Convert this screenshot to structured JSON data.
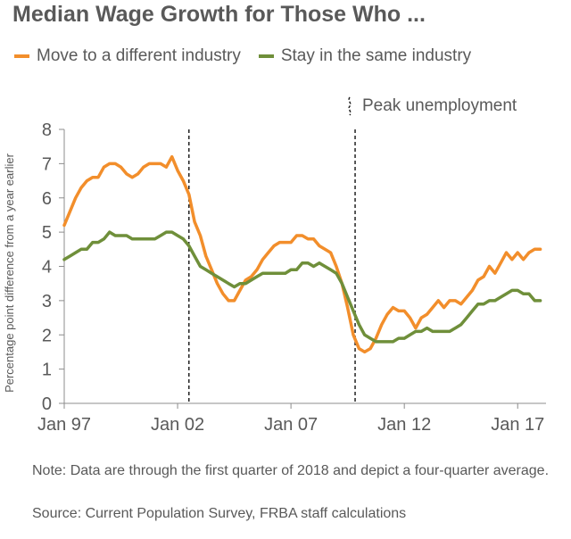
{
  "title": "Median Wage Growth for Those Who  ...",
  "legend": {
    "move": "Move to a different industry",
    "stay": "Stay in the same industry"
  },
  "annotation": "Peak unemployment",
  "note": "Note: Data are through the first quarter of 2018 and depict a four-quarter  average.",
  "source": "Source: Current Population Survey, FRBA staff calculations",
  "colors": {
    "move": "#f28e2b",
    "stay": "#6f8f3a",
    "text": "#595959",
    "axis": "#8c8c8c"
  },
  "chart_data": {
    "type": "line",
    "title": "Median Wage Growth for Those Who  ...",
    "ylabel": "Percentage point difference from a year earlier",
    "xlabel": "",
    "xlim": [
      1997.0,
      2018.25
    ],
    "ylim": [
      0,
      8
    ],
    "yticks": [
      "0",
      "1",
      "2",
      "3",
      "4",
      "5",
      "6",
      "7",
      "8"
    ],
    "xticks": [
      {
        "label": "Jan 97",
        "x": 1997.0
      },
      {
        "label": "Jan 02",
        "x": 2002.0
      },
      {
        "label": "Jan 07",
        "x": 2007.0
      },
      {
        "label": "Jan 12",
        "x": 2012.0
      },
      {
        "label": "Jan 17",
        "x": 2017.0
      }
    ],
    "grid": false,
    "legend_position": "top",
    "vlines": [
      {
        "x": 2002.5,
        "label": ""
      },
      {
        "x": 2009.83,
        "label": "Peak unemployment"
      }
    ],
    "series": [
      {
        "name": "Move to a different industry",
        "color": "#f28e2b",
        "points": [
          [
            1997.0,
            5.2
          ],
          [
            1997.25,
            5.6
          ],
          [
            1997.5,
            6.0
          ],
          [
            1997.75,
            6.3
          ],
          [
            1998.0,
            6.5
          ],
          [
            1998.25,
            6.6
          ],
          [
            1998.5,
            6.6
          ],
          [
            1998.75,
            6.9
          ],
          [
            1999.0,
            7.0
          ],
          [
            1999.25,
            7.0
          ],
          [
            1999.5,
            6.9
          ],
          [
            1999.75,
            6.7
          ],
          [
            2000.0,
            6.6
          ],
          [
            2000.25,
            6.7
          ],
          [
            2000.5,
            6.9
          ],
          [
            2000.75,
            7.0
          ],
          [
            2001.0,
            7.0
          ],
          [
            2001.25,
            7.0
          ],
          [
            2001.5,
            6.9
          ],
          [
            2001.75,
            7.2
          ],
          [
            2002.0,
            6.8
          ],
          [
            2002.25,
            6.5
          ],
          [
            2002.5,
            6.1
          ],
          [
            2002.75,
            5.3
          ],
          [
            2003.0,
            4.9
          ],
          [
            2003.25,
            4.3
          ],
          [
            2003.5,
            3.9
          ],
          [
            2003.75,
            3.5
          ],
          [
            2004.0,
            3.2
          ],
          [
            2004.25,
            3.0
          ],
          [
            2004.5,
            3.0
          ],
          [
            2004.75,
            3.3
          ],
          [
            2005.0,
            3.6
          ],
          [
            2005.25,
            3.7
          ],
          [
            2005.5,
            3.9
          ],
          [
            2005.75,
            4.2
          ],
          [
            2006.0,
            4.4
          ],
          [
            2006.25,
            4.6
          ],
          [
            2006.5,
            4.7
          ],
          [
            2006.75,
            4.7
          ],
          [
            2007.0,
            4.7
          ],
          [
            2007.25,
            4.9
          ],
          [
            2007.5,
            4.9
          ],
          [
            2007.75,
            4.8
          ],
          [
            2008.0,
            4.8
          ],
          [
            2008.25,
            4.6
          ],
          [
            2008.5,
            4.5
          ],
          [
            2008.75,
            4.4
          ],
          [
            2009.0,
            4.0
          ],
          [
            2009.25,
            3.5
          ],
          [
            2009.5,
            2.8
          ],
          [
            2009.75,
            2.0
          ],
          [
            2010.0,
            1.6
          ],
          [
            2010.25,
            1.5
          ],
          [
            2010.5,
            1.6
          ],
          [
            2010.75,
            1.9
          ],
          [
            2011.0,
            2.3
          ],
          [
            2011.25,
            2.6
          ],
          [
            2011.5,
            2.8
          ],
          [
            2011.75,
            2.7
          ],
          [
            2012.0,
            2.7
          ],
          [
            2012.25,
            2.5
          ],
          [
            2012.5,
            2.2
          ],
          [
            2012.75,
            2.5
          ],
          [
            2013.0,
            2.6
          ],
          [
            2013.25,
            2.8
          ],
          [
            2013.5,
            3.0
          ],
          [
            2013.75,
            2.8
          ],
          [
            2014.0,
            3.0
          ],
          [
            2014.25,
            3.0
          ],
          [
            2014.5,
            2.9
          ],
          [
            2014.75,
            3.1
          ],
          [
            2015.0,
            3.3
          ],
          [
            2015.25,
            3.6
          ],
          [
            2015.5,
            3.7
          ],
          [
            2015.75,
            4.0
          ],
          [
            2016.0,
            3.8
          ],
          [
            2016.25,
            4.1
          ],
          [
            2016.5,
            4.4
          ],
          [
            2016.75,
            4.2
          ],
          [
            2017.0,
            4.4
          ],
          [
            2017.25,
            4.2
          ],
          [
            2017.5,
            4.4
          ],
          [
            2017.75,
            4.5
          ],
          [
            2018.0,
            4.5
          ]
        ]
      },
      {
        "name": "Stay in the same industry",
        "color": "#6f8f3a",
        "points": [
          [
            1997.0,
            4.2
          ],
          [
            1997.25,
            4.3
          ],
          [
            1997.5,
            4.4
          ],
          [
            1997.75,
            4.5
          ],
          [
            1998.0,
            4.5
          ],
          [
            1998.25,
            4.7
          ],
          [
            1998.5,
            4.7
          ],
          [
            1998.75,
            4.8
          ],
          [
            1999.0,
            5.0
          ],
          [
            1999.25,
            4.9
          ],
          [
            1999.5,
            4.9
          ],
          [
            1999.75,
            4.9
          ],
          [
            2000.0,
            4.8
          ],
          [
            2000.25,
            4.8
          ],
          [
            2000.5,
            4.8
          ],
          [
            2000.75,
            4.8
          ],
          [
            2001.0,
            4.8
          ],
          [
            2001.25,
            4.9
          ],
          [
            2001.5,
            5.0
          ],
          [
            2001.75,
            5.0
          ],
          [
            2002.0,
            4.9
          ],
          [
            2002.25,
            4.8
          ],
          [
            2002.5,
            4.6
          ],
          [
            2002.75,
            4.3
          ],
          [
            2003.0,
            4.0
          ],
          [
            2003.25,
            3.9
          ],
          [
            2003.5,
            3.8
          ],
          [
            2003.75,
            3.7
          ],
          [
            2004.0,
            3.6
          ],
          [
            2004.25,
            3.5
          ],
          [
            2004.5,
            3.4
          ],
          [
            2004.75,
            3.5
          ],
          [
            2005.0,
            3.5
          ],
          [
            2005.25,
            3.6
          ],
          [
            2005.5,
            3.7
          ],
          [
            2005.75,
            3.8
          ],
          [
            2006.0,
            3.8
          ],
          [
            2006.25,
            3.8
          ],
          [
            2006.5,
            3.8
          ],
          [
            2006.75,
            3.8
          ],
          [
            2007.0,
            3.9
          ],
          [
            2007.25,
            3.9
          ],
          [
            2007.5,
            4.1
          ],
          [
            2007.75,
            4.1
          ],
          [
            2008.0,
            4.0
          ],
          [
            2008.25,
            4.1
          ],
          [
            2008.5,
            4.0
          ],
          [
            2008.75,
            3.9
          ],
          [
            2009.0,
            3.8
          ],
          [
            2009.25,
            3.5
          ],
          [
            2009.5,
            3.1
          ],
          [
            2009.75,
            2.7
          ],
          [
            2010.0,
            2.3
          ],
          [
            2010.25,
            2.0
          ],
          [
            2010.5,
            1.9
          ],
          [
            2010.75,
            1.8
          ],
          [
            2011.0,
            1.8
          ],
          [
            2011.25,
            1.8
          ],
          [
            2011.5,
            1.8
          ],
          [
            2011.75,
            1.9
          ],
          [
            2012.0,
            1.9
          ],
          [
            2012.25,
            2.0
          ],
          [
            2012.5,
            2.1
          ],
          [
            2012.75,
            2.1
          ],
          [
            2013.0,
            2.2
          ],
          [
            2013.25,
            2.1
          ],
          [
            2013.5,
            2.1
          ],
          [
            2013.75,
            2.1
          ],
          [
            2014.0,
            2.1
          ],
          [
            2014.25,
            2.2
          ],
          [
            2014.5,
            2.3
          ],
          [
            2014.75,
            2.5
          ],
          [
            2015.0,
            2.7
          ],
          [
            2015.25,
            2.9
          ],
          [
            2015.5,
            2.9
          ],
          [
            2015.75,
            3.0
          ],
          [
            2016.0,
            3.0
          ],
          [
            2016.25,
            3.1
          ],
          [
            2016.5,
            3.2
          ],
          [
            2016.75,
            3.3
          ],
          [
            2017.0,
            3.3
          ],
          [
            2017.25,
            3.2
          ],
          [
            2017.5,
            3.2
          ],
          [
            2017.75,
            3.0
          ],
          [
            2018.0,
            3.0
          ]
        ]
      }
    ]
  }
}
